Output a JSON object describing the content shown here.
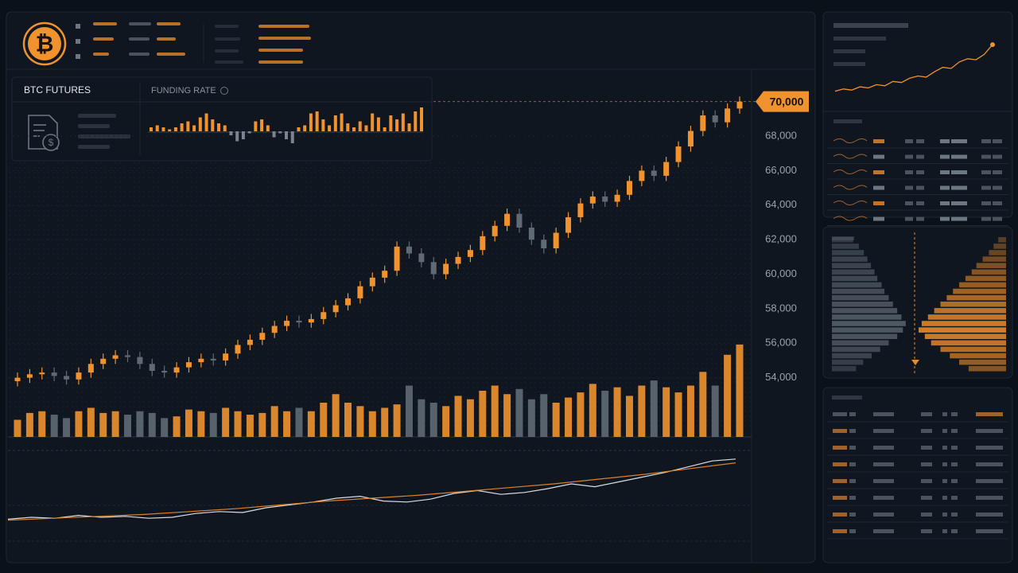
{
  "header": {
    "logo_symbol": "₿"
  },
  "panel": {
    "title": "BTC FUTURES",
    "funding_label": "FUNDING RATE"
  },
  "chart_data": [
    {
      "type": "candlestick",
      "open": [
        53800,
        54000,
        54200,
        54300,
        54100,
        53900,
        54300,
        54800,
        55100,
        55300,
        55200,
        54800,
        54400,
        54300,
        54600,
        54900,
        55100,
        55000,
        55400,
        55900,
        56200,
        56600,
        57000,
        57300,
        57200,
        57400,
        57800,
        58200,
        58600,
        59300,
        59800,
        60200,
        61600,
        61200,
        60700,
        60000,
        60600,
        61000,
        61400,
        62200,
        62800,
        63500,
        62700,
        62000,
        61500,
        62400,
        63300,
        64100,
        64500,
        64200,
        64600,
        65400,
        66000,
        65700,
        66500,
        67400,
        68300,
        69200,
        68800,
        69600
      ],
      "high": [
        54300,
        54500,
        54600,
        54600,
        54400,
        54600,
        55100,
        55400,
        55600,
        55600,
        55500,
        55100,
        54700,
        54900,
        55200,
        55400,
        55400,
        55700,
        56200,
        56500,
        56900,
        57300,
        57600,
        57600,
        57700,
        58100,
        58500,
        58900,
        59600,
        60100,
        60500,
        61900,
        61900,
        61500,
        61000,
        60900,
        61300,
        61700,
        62500,
        63100,
        63800,
        63800,
        63000,
        62300,
        62700,
        63600,
        64400,
        64800,
        64800,
        64900,
        65700,
        66300,
        66300,
        66800,
        67700,
        68600,
        69500,
        69500,
        69900,
        70300
      ],
      "low": [
        53500,
        53700,
        53900,
        53800,
        53600,
        53600,
        54000,
        54500,
        54800,
        54900,
        54500,
        54100,
        54000,
        54000,
        54300,
        54600,
        54700,
        54700,
        55100,
        55600,
        55900,
        56300,
        56700,
        56900,
        56900,
        57100,
        57500,
        57900,
        58300,
        59000,
        59500,
        59900,
        60900,
        60400,
        59700,
        59700,
        60300,
        60700,
        61100,
        61900,
        62500,
        62400,
        61700,
        61200,
        61200,
        62100,
        63000,
        63800,
        63900,
        63900,
        64300,
        65100,
        65400,
        65400,
        66200,
        67100,
        68000,
        68500,
        68500,
        69300
      ],
      "close": [
        54000,
        54200,
        54300,
        54100,
        53900,
        54300,
        54800,
        55100,
        55300,
        55200,
        54800,
        54400,
        54300,
        54600,
        54900,
        55100,
        55000,
        55400,
        55900,
        56200,
        56600,
        57000,
        57300,
        57200,
        57400,
        57800,
        58200,
        58600,
        59300,
        59800,
        60200,
        61600,
        61200,
        60700,
        60000,
        60600,
        61000,
        61400,
        62200,
        62800,
        63500,
        62700,
        62000,
        61500,
        62400,
        63300,
        64100,
        64500,
        64200,
        64600,
        65400,
        66000,
        65700,
        66500,
        67400,
        68300,
        69200,
        68800,
        69600,
        70000
      ],
      "up_color": "#f0922e",
      "down_color": "#5f6a75",
      "ylim": [
        52000,
        71000
      ],
      "yticks": [
        {
          "value": 54000,
          "label": "54,000"
        },
        {
          "value": 56000,
          "label": "56,000"
        },
        {
          "value": 58000,
          "label": "58,000"
        },
        {
          "value": 60000,
          "label": "60,000"
        },
        {
          "value": 62000,
          "label": "62,000"
        },
        {
          "value": 64000,
          "label": "64,000"
        },
        {
          "value": 66000,
          "label": "66,000"
        },
        {
          "value": 68000,
          "label": "68,000"
        }
      ],
      "last_price": {
        "value": 70000,
        "label": "70,000"
      }
    },
    {
      "type": "volume",
      "values": [
        20,
        28,
        30,
        26,
        22,
        30,
        34,
        28,
        30,
        26,
        30,
        28,
        22,
        24,
        32,
        30,
        28,
        34,
        30,
        26,
        28,
        36,
        30,
        34,
        30,
        40,
        50,
        40,
        36,
        30,
        34,
        38,
        60,
        44,
        40,
        36,
        48,
        44,
        54,
        60,
        50,
        56,
        44,
        50,
        40,
        46,
        52,
        62,
        54,
        58,
        48,
        60,
        66,
        58,
        52,
        60,
        76,
        60,
        96,
        108
      ],
      "ylim": [
        0,
        120
      ]
    },
    {
      "type": "line",
      "series": [
        {
          "color": "#d9dee5",
          "values": [
            23,
            25,
            24,
            27,
            25,
            26,
            24,
            25,
            29,
            31,
            30,
            35,
            38,
            41,
            45,
            47,
            42,
            41,
            44,
            50,
            53,
            49,
            51,
            55,
            60,
            57,
            62,
            67,
            72,
            78,
            84,
            86
          ]
        },
        {
          "color": "#d9822b",
          "values": [
            22,
            24,
            26,
            28,
            31,
            34,
            38,
            42,
            45,
            48,
            52,
            56,
            60,
            65,
            70,
            76,
            82
          ]
        }
      ],
      "ylim": [
        0,
        100
      ]
    },
    {
      "type": "funding",
      "values": [
        2,
        3,
        2,
        1,
        2,
        4,
        5,
        3,
        7,
        9,
        6,
        4,
        3,
        -2,
        -5,
        -4,
        -1,
        5,
        6,
        3,
        -3,
        -1,
        -4,
        -6,
        2,
        3,
        9,
        10,
        6,
        3,
        8,
        9,
        4,
        2,
        5,
        3,
        9,
        7,
        2,
        8,
        6,
        9,
        4,
        10,
        12
      ],
      "ylim": [
        -10,
        14
      ],
      "pos_color": "#f0922e",
      "neg_color": "#7a8490"
    },
    {
      "type": "sparkline",
      "values": [
        4,
        6,
        5,
        8,
        7,
        10,
        9,
        13,
        12,
        16,
        18,
        17,
        22,
        26,
        25,
        31,
        34,
        33,
        38,
        47
      ],
      "ylim": [
        0,
        50
      ],
      "color": "#f0922e"
    },
    {
      "type": "depth",
      "bids": [
        30,
        38,
        45,
        50,
        55,
        60,
        64,
        70,
        74,
        80,
        86,
        92,
        98,
        104,
        100,
        92,
        80,
        68,
        56,
        44,
        34
      ],
      "asks": [
        10,
        16,
        22,
        30,
        38,
        44,
        52,
        60,
        68,
        76,
        84,
        92,
        100,
        108,
        112,
        104,
        96,
        84,
        72,
        60,
        48
      ],
      "bid_color": "#59636e",
      "ask_color": "#e8892a"
    }
  ]
}
